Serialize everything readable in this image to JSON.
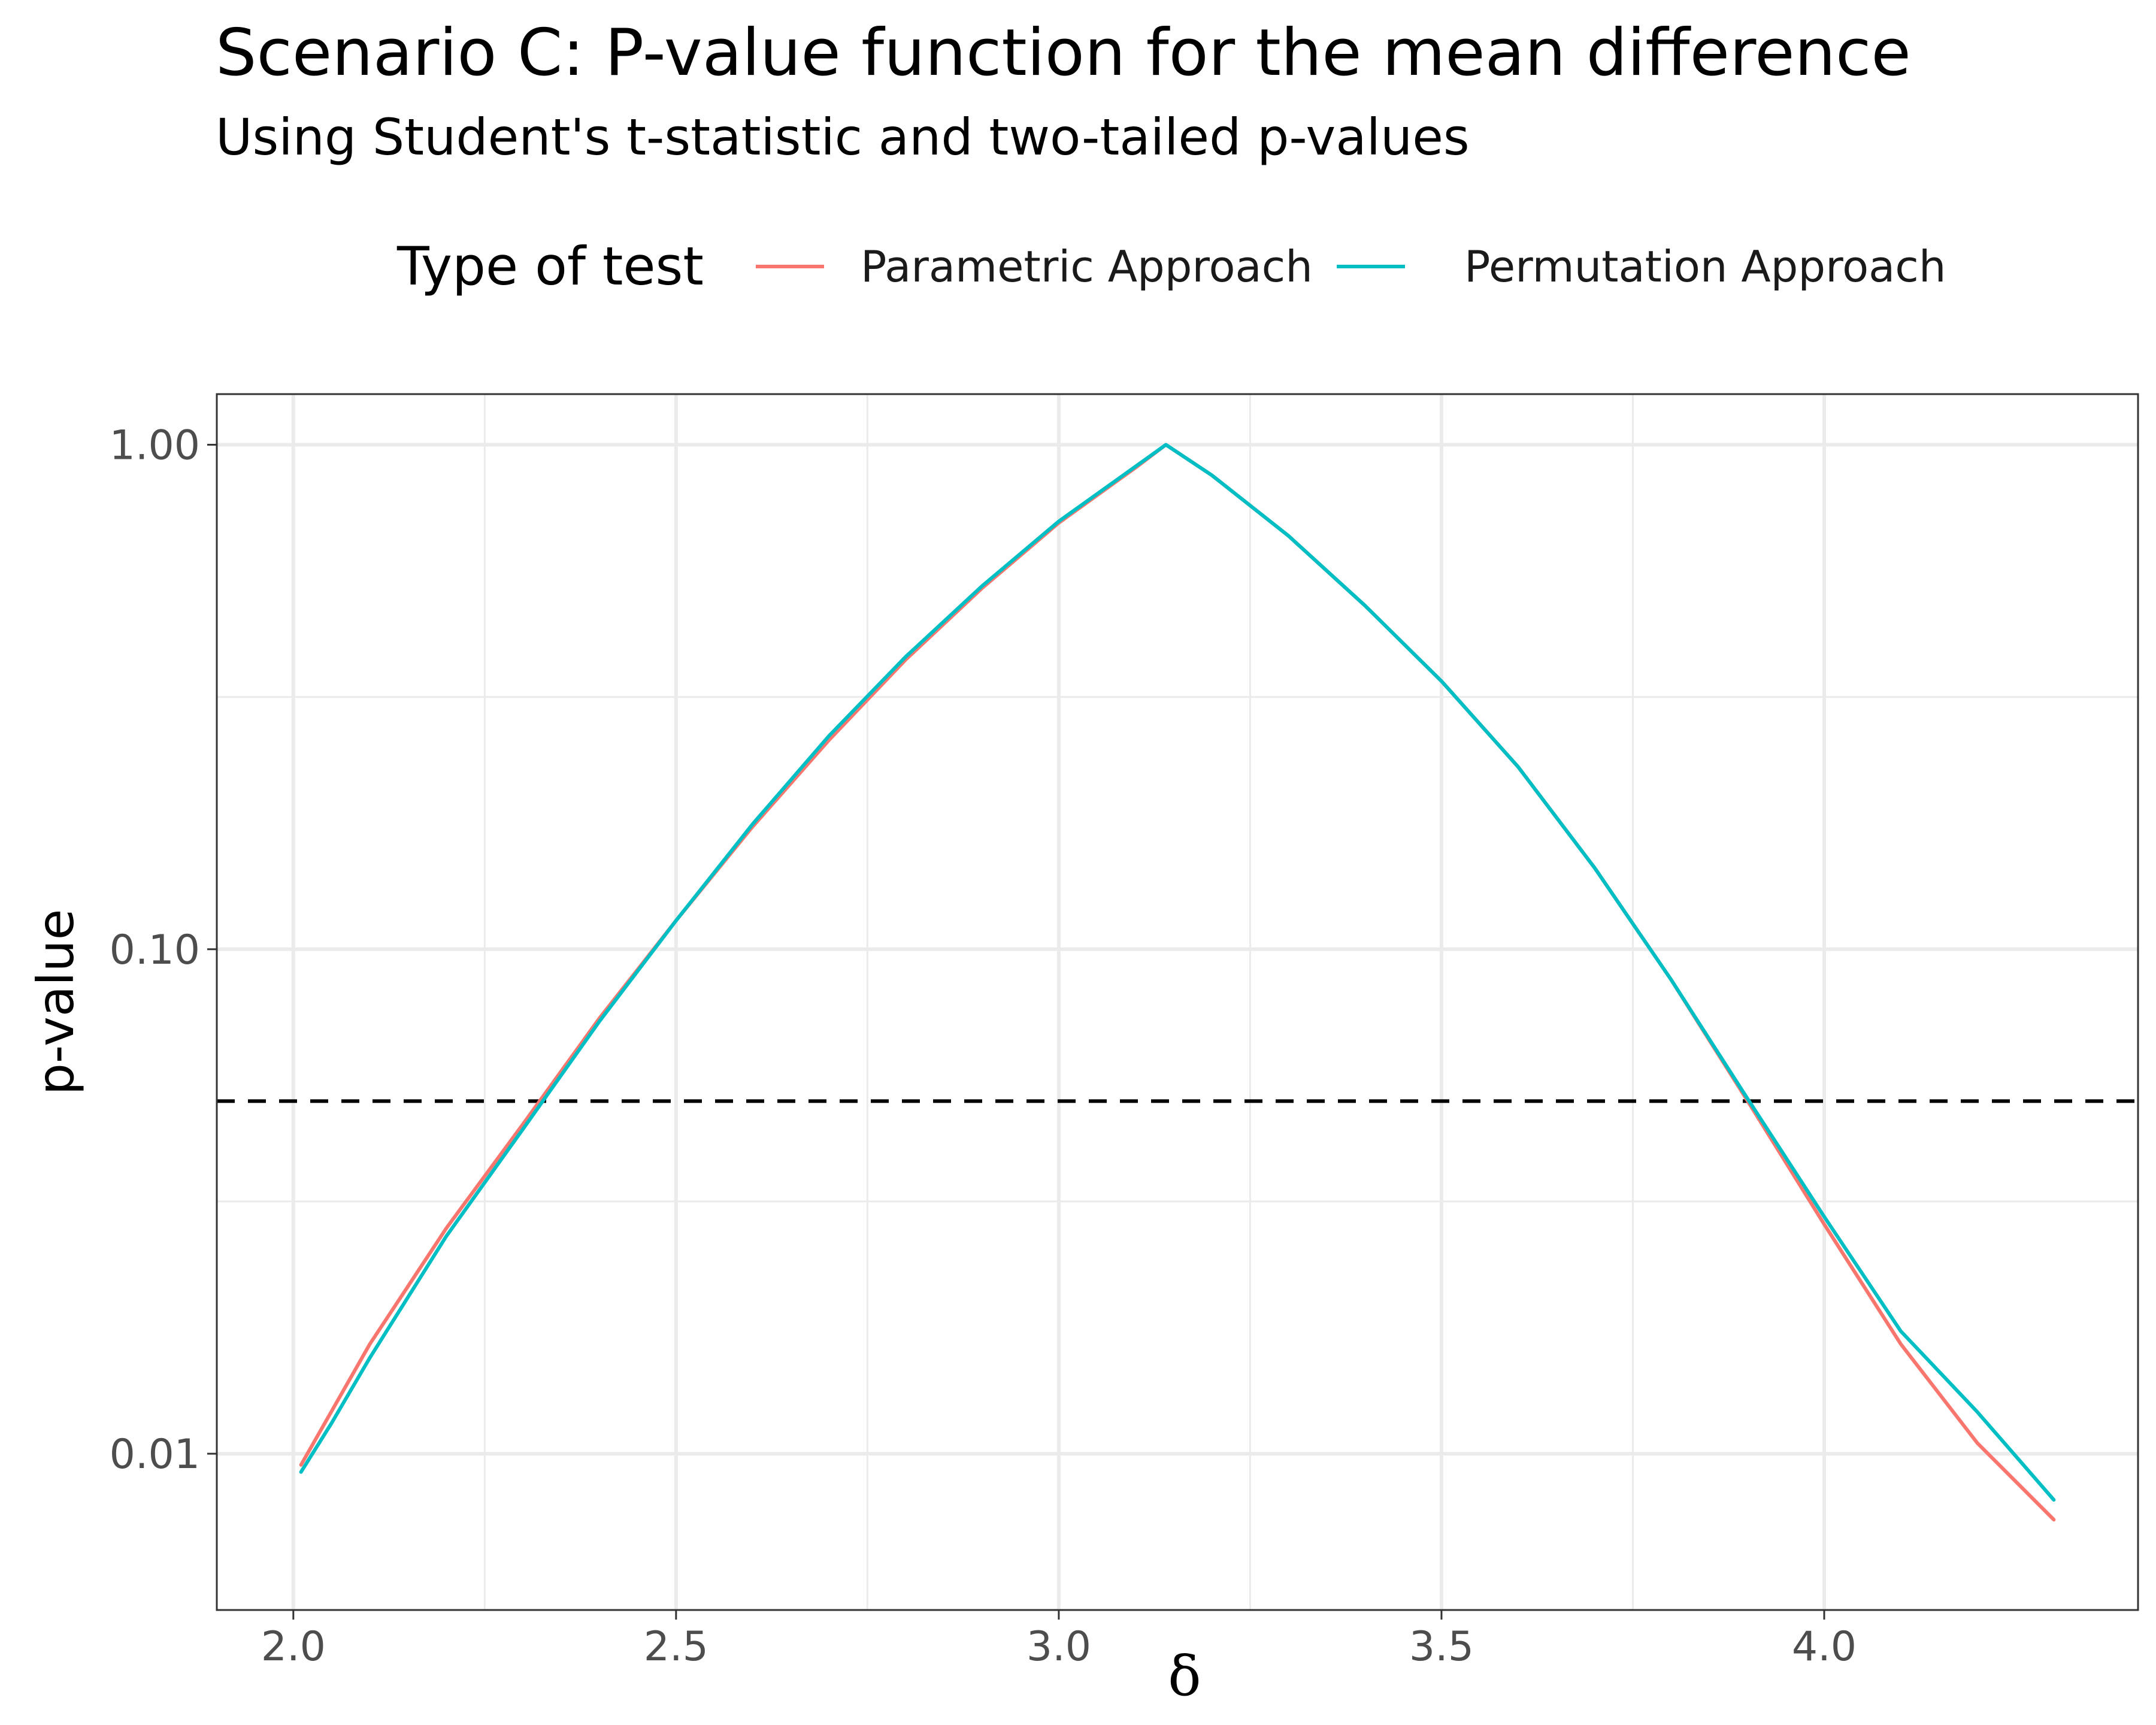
{
  "chart_data": {
    "type": "line",
    "title": "Scenario C: P-value function for the mean difference",
    "subtitle": "Using Student's t-statistic and two-tailed p-values",
    "xlabel": "δ",
    "ylabel": "p-value",
    "xlim": [
      1.9,
      4.41
    ],
    "ylim": [
      0.0049,
      1.26
    ],
    "y_scale": "log10",
    "x_ticks": [
      2.0,
      2.5,
      3.0,
      3.5,
      4.0
    ],
    "x_tick_labels": [
      "2.0",
      "2.5",
      "3.0",
      "3.5",
      "4.0"
    ],
    "y_ticks": [
      0.01,
      0.1,
      1.0
    ],
    "y_tick_labels": [
      "0.01",
      "0.10",
      "1.00"
    ],
    "grid": true,
    "legend": {
      "title": "Type of test",
      "position": "top"
    },
    "reference_line": {
      "y": 0.05,
      "style": "dashed",
      "color": "#000000"
    },
    "series": [
      {
        "name": "Parametric Approach",
        "color": "#F8766D",
        "x": [
          2.01,
          2.1,
          2.2,
          2.3,
          2.4,
          2.5,
          2.6,
          2.7,
          2.8,
          2.9,
          3.0,
          3.1,
          3.14,
          3.2,
          3.3,
          3.4,
          3.5,
          3.6,
          3.7,
          3.8,
          3.9,
          4.0,
          4.1,
          4.2,
          4.3
        ],
        "values": [
          0.0095,
          0.0165,
          0.028,
          0.045,
          0.073,
          0.114,
          0.175,
          0.26,
          0.375,
          0.52,
          0.7,
          0.9,
          1.0,
          0.87,
          0.66,
          0.48,
          0.34,
          0.23,
          0.145,
          0.087,
          0.05,
          0.0285,
          0.0165,
          0.0105,
          0.0074
        ]
      },
      {
        "name": "Permutation Approach",
        "color": "#00BFC4",
        "x": [
          2.01,
          2.05,
          2.1,
          2.2,
          2.3,
          2.4,
          2.5,
          2.6,
          2.7,
          2.8,
          2.9,
          3.0,
          3.1,
          3.14,
          3.2,
          3.3,
          3.4,
          3.5,
          3.6,
          3.7,
          3.8,
          3.9,
          4.0,
          4.1,
          4.2,
          4.3
        ],
        "values": [
          0.0092,
          0.0115,
          0.0155,
          0.027,
          0.044,
          0.072,
          0.114,
          0.177,
          0.265,
          0.38,
          0.525,
          0.705,
          0.905,
          1.0,
          0.87,
          0.66,
          0.48,
          0.34,
          0.23,
          0.145,
          0.087,
          0.0505,
          0.0295,
          0.0175,
          0.0121,
          0.0081
        ]
      }
    ]
  }
}
